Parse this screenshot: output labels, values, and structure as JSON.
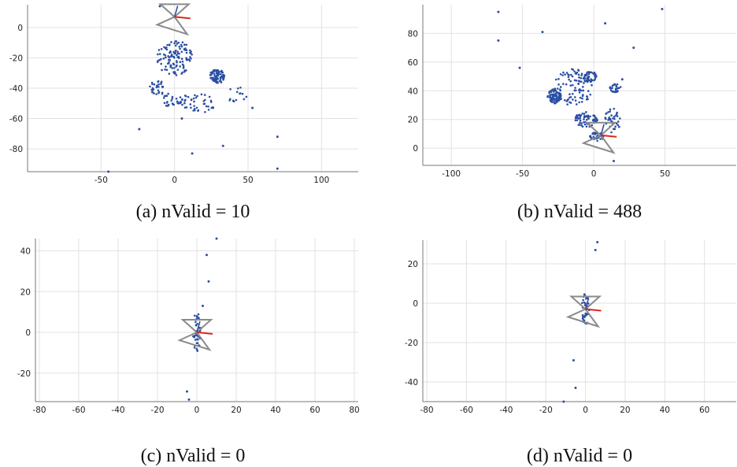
{
  "chart_data": [
    {
      "type": "scatter",
      "caption": "(a) nValid = 10",
      "xticks": [
        -50,
        0,
        50,
        100
      ],
      "yticks": [
        0,
        -20,
        -40,
        -60,
        -80
      ],
      "xlim": [
        -100,
        125
      ],
      "ylim": [
        -95,
        15
      ],
      "clusters": [
        {
          "cx": 0,
          "cy": -20,
          "rx": 12,
          "ry": 12,
          "n": 120
        },
        {
          "cx": 29,
          "cy": -32,
          "rx": 5,
          "ry": 5,
          "n": 80
        },
        {
          "cx": 2,
          "cy": -48,
          "rx": 10,
          "ry": 6,
          "n": 40
        },
        {
          "cx": -12,
          "cy": -40,
          "rx": 6,
          "ry": 5,
          "n": 30
        },
        {
          "cx": 18,
          "cy": -50,
          "rx": 10,
          "ry": 6,
          "n": 30
        },
        {
          "cx": 42,
          "cy": -44,
          "rx": 8,
          "ry": 5,
          "n": 15
        }
      ],
      "outliers": [
        [
          -10,
          14
        ],
        [
          -24,
          -67
        ],
        [
          -45,
          -95
        ],
        [
          12,
          -83
        ],
        [
          33,
          -78
        ],
        [
          70,
          -72
        ],
        [
          70,
          -93
        ],
        [
          53,
          -53
        ],
        [
          5,
          -60
        ]
      ],
      "camera": {
        "x": 0,
        "y": 7,
        "rotation": 0
      }
    },
    {
      "type": "scatter",
      "caption": "(b) nValid = 488",
      "xticks": [
        -100,
        -50,
        0,
        50
      ],
      "yticks": [
        80,
        60,
        40,
        20,
        0
      ],
      "xlim": [
        -120,
        100
      ],
      "ylim": [
        -12,
        100
      ],
      "clusters": [
        {
          "cx": -28,
          "cy": 36,
          "rx": 5,
          "ry": 5,
          "n": 80
        },
        {
          "cx": -3,
          "cy": 50,
          "rx": 5,
          "ry": 4,
          "n": 40
        },
        {
          "cx": -5,
          "cy": 20,
          "rx": 8,
          "ry": 6,
          "n": 60
        },
        {
          "cx": 2,
          "cy": 8,
          "rx": 5,
          "ry": 3,
          "n": 40
        },
        {
          "cx": -15,
          "cy": 42,
          "rx": 14,
          "ry": 14,
          "n": 100
        },
        {
          "cx": 15,
          "cy": 42,
          "rx": 4,
          "ry": 3,
          "n": 30
        },
        {
          "cx": 14,
          "cy": 20,
          "rx": 6,
          "ry": 10,
          "n": 40
        }
      ],
      "outliers": [
        [
          -67,
          95
        ],
        [
          -67,
          75
        ],
        [
          -36,
          81
        ],
        [
          8,
          87
        ],
        [
          48,
          97
        ],
        [
          28,
          70
        ],
        [
          14,
          -9
        ],
        [
          -52,
          56
        ],
        [
          20,
          48
        ]
      ],
      "camera": {
        "x": 5,
        "y": 9,
        "rotation": 0
      }
    },
    {
      "type": "scatter",
      "caption": "(c) nValid = 0",
      "xticks": [
        -80,
        -60,
        -40,
        -20,
        0,
        20,
        40,
        60,
        80
      ],
      "yticks": [
        40,
        20,
        0,
        -20
      ],
      "xlim": [
        -82,
        82
      ],
      "ylim": [
        -34,
        46
      ],
      "clusters": [
        {
          "cx": 0,
          "cy": 0,
          "rx": 2,
          "ry": 10,
          "n": 40
        }
      ],
      "outliers": [
        [
          10,
          46
        ],
        [
          5,
          38
        ],
        [
          6,
          25
        ],
        [
          -4,
          -33
        ],
        [
          -5,
          -29
        ],
        [
          3,
          13
        ]
      ],
      "camera": {
        "x": 0,
        "y": 0,
        "rotation": 0
      }
    },
    {
      "type": "scatter",
      "caption": "(d) nValid = 0",
      "xticks": [
        -80,
        -60,
        -40,
        -20,
        0,
        20,
        40,
        60
      ],
      "yticks": [
        20,
        0,
        -20,
        -40
      ],
      "xlim": [
        -82,
        76
      ],
      "ylim": [
        -50,
        32
      ],
      "clusters": [
        {
          "cx": 0,
          "cy": -3,
          "rx": 2,
          "ry": 8,
          "n": 40
        }
      ],
      "outliers": [
        [
          6,
          31
        ],
        [
          5,
          27
        ],
        [
          -6,
          -29
        ],
        [
          -5,
          -43
        ],
        [
          -11,
          -50
        ]
      ],
      "camera": {
        "x": 0,
        "y": -3,
        "rotation": 0
      }
    }
  ]
}
